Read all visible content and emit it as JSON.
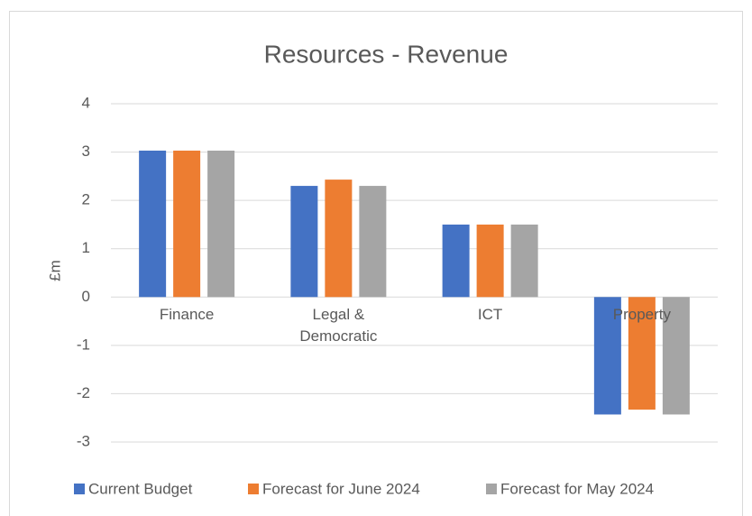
{
  "chart_data": {
    "type": "bar",
    "title": "Resources - Revenue",
    "y_label": "£m",
    "categories": [
      "Finance",
      "Legal & Democratic",
      "ICT",
      "Property"
    ],
    "series": [
      {
        "name": "Current Budget",
        "color": "#4472c4",
        "values": [
          3.03,
          2.3,
          1.5,
          -2.43
        ]
      },
      {
        "name": "Forecast for June 2024",
        "color": "#ed7d31",
        "values": [
          3.03,
          2.43,
          1.5,
          -2.33
        ]
      },
      {
        "name": "Forecast for May 2024",
        "color": "#a5a5a5",
        "values": [
          3.03,
          2.3,
          1.5,
          -2.43
        ]
      }
    ],
    "ylim": [
      -3,
      4
    ],
    "yticks": [
      -3,
      -2,
      -1,
      0,
      1,
      2,
      3,
      4
    ],
    "grid": true,
    "legend": "bottom"
  }
}
